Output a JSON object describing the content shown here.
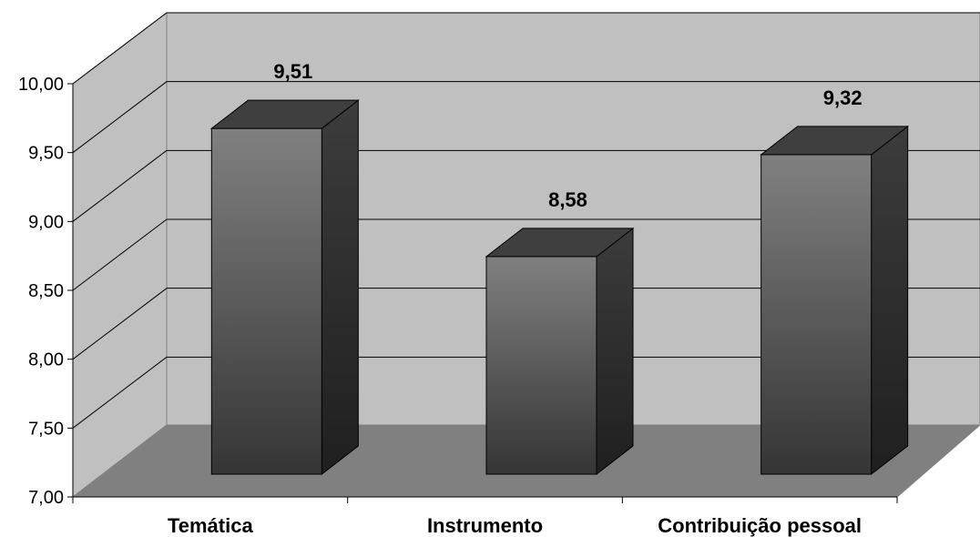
{
  "chart_data": {
    "type": "bar",
    "categories": [
      "Temática",
      "Instrumento",
      "Contribuição pessoal"
    ],
    "values": [
      9.51,
      8.58,
      9.32
    ],
    "data_labels": [
      "9,51",
      "8,58",
      "9,32"
    ],
    "title": "",
    "xlabel": "",
    "ylabel": "",
    "ylim": [
      7.0,
      10.0
    ],
    "yticks": [
      7.0,
      7.5,
      8.0,
      8.5,
      9.0,
      9.5,
      10.0
    ],
    "ytick_labels": [
      "7,00",
      "7,50",
      "8,00",
      "8,50",
      "9,00",
      "9,50",
      "10,00"
    ],
    "grid": true,
    "legend": "none",
    "style": "3d-column",
    "colors": {
      "wall": "#c0c0c0",
      "floor": "#808080",
      "bar_front_light": "#7f7f7f",
      "bar_front_dark": "#333333",
      "bar_side": "#333333",
      "bar_top": "#3f3f3f",
      "gridline": "#000000"
    }
  }
}
